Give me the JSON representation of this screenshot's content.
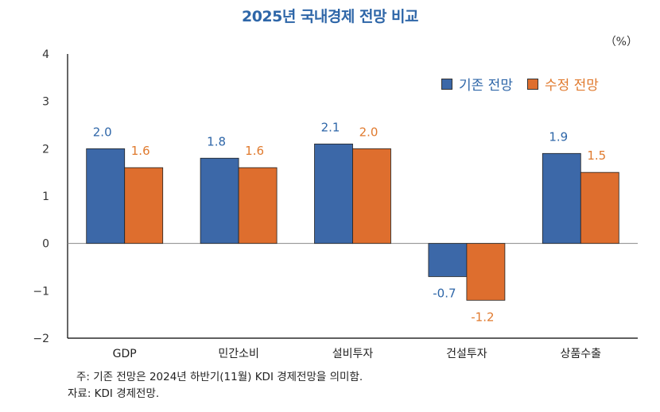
{
  "chart_data": {
    "type": "bar",
    "title": "2025년 국내경제 전망 비교",
    "unit_label": "（%）",
    "categories": [
      "GDP",
      "민간소비",
      "설비투자",
      "건설투자",
      "상품수출"
    ],
    "series": [
      {
        "name": "기존 전망",
        "values": [
          2.0,
          1.8,
          2.1,
          -0.7,
          1.9
        ],
        "labels": [
          "2.0",
          "1.8",
          "2.1",
          "-0.7",
          "1.9"
        ],
        "color": "#3C68A8",
        "label_color": "#2E66A8"
      },
      {
        "name": "수정 전망",
        "values": [
          1.6,
          1.6,
          2.0,
          -1.2,
          1.5
        ],
        "labels": [
          "1.6",
          "1.6",
          "2.0",
          "-1.2",
          "1.5"
        ],
        "color": "#DE6E2E",
        "label_color": "#E07A2E"
      }
    ],
    "ylim": [
      -2,
      4
    ],
    "yticks": [
      -2,
      -1,
      0,
      1,
      2,
      3,
      4
    ],
    "ytick_labels": [
      "−2",
      "−1",
      "0",
      "1",
      "2",
      "3",
      "4"
    ],
    "legend_position": "top-right",
    "grid": false
  },
  "note": "주: 기존 전망은 2024년 하반기(11월) KDI 경제전망을 의미함.",
  "source": "자료: KDI 경제전망."
}
